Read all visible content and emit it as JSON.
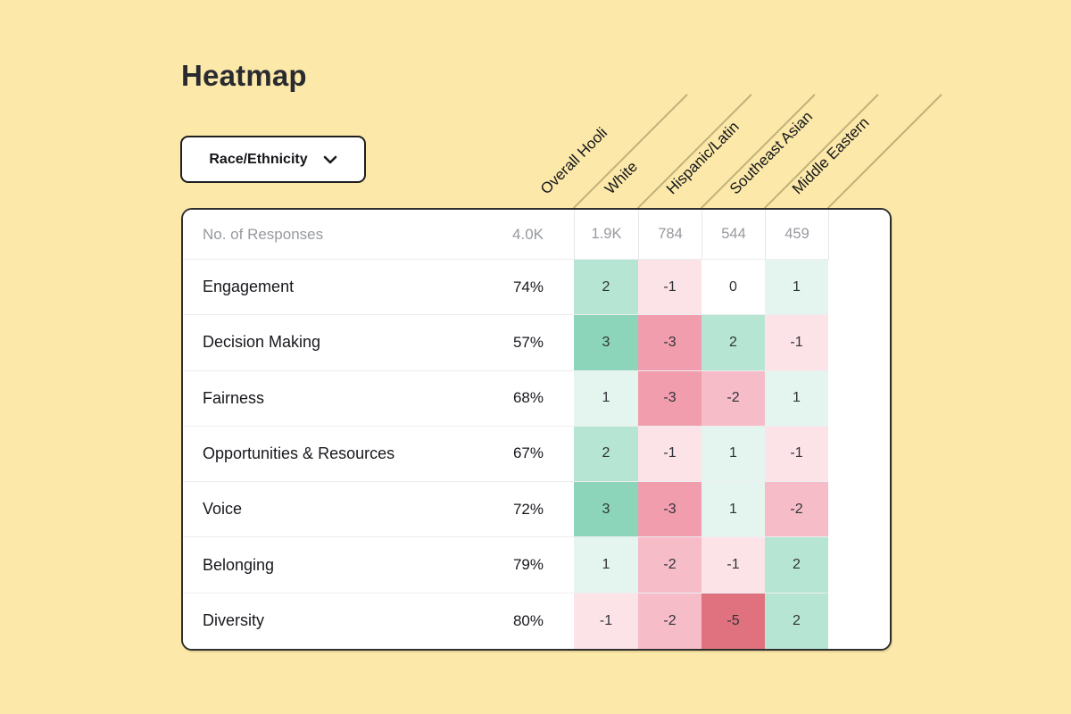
{
  "page": {
    "title": "Heatmap"
  },
  "filter_dropdown": {
    "label": "Race/Ethnicity",
    "icon": "chevron-down-icon"
  },
  "chart_data": {
    "type": "heatmap",
    "title": "Heatmap",
    "group_by": "Race/Ethnicity",
    "columns": [
      "Overall Hooli",
      "White",
      "Hispanic/Latin",
      "Southeast Asian",
      "Middle Eastern"
    ],
    "header_row": {
      "label": "No. of Responses",
      "values": [
        "4.0K",
        "1.9K",
        "784",
        "544",
        "459"
      ]
    },
    "rows": [
      {
        "label": "Engagement",
        "overall": "74%",
        "deltas": [
          2,
          -1,
          0,
          1
        ]
      },
      {
        "label": "Decision Making",
        "overall": "57%",
        "deltas": [
          3,
          -3,
          2,
          -1
        ]
      },
      {
        "label": "Fairness",
        "overall": "68%",
        "deltas": [
          1,
          -3,
          -2,
          1
        ]
      },
      {
        "label": "Opportunities & Resources",
        "overall": "67%",
        "deltas": [
          2,
          -1,
          1,
          -1
        ]
      },
      {
        "label": "Voice",
        "overall": "72%",
        "deltas": [
          3,
          -3,
          1,
          -2
        ]
      },
      {
        "label": "Belonging",
        "overall": "79%",
        "deltas": [
          1,
          -2,
          -1,
          2
        ]
      },
      {
        "label": "Diversity",
        "overall": "80%",
        "deltas": [
          -1,
          -2,
          -5,
          2
        ]
      }
    ],
    "colors": {
      "background": "#FCE9A9",
      "zero": "#FFFFFF",
      "positive": {
        "1": "#E3F5EE",
        "2": "#B6E6D3",
        "3": "#8CD4BA"
      },
      "negative": {
        "1": "#FCE3E8",
        "2": "#F6BDC9",
        "3": "#F19DAE",
        "5": "#E0717F"
      }
    }
  }
}
